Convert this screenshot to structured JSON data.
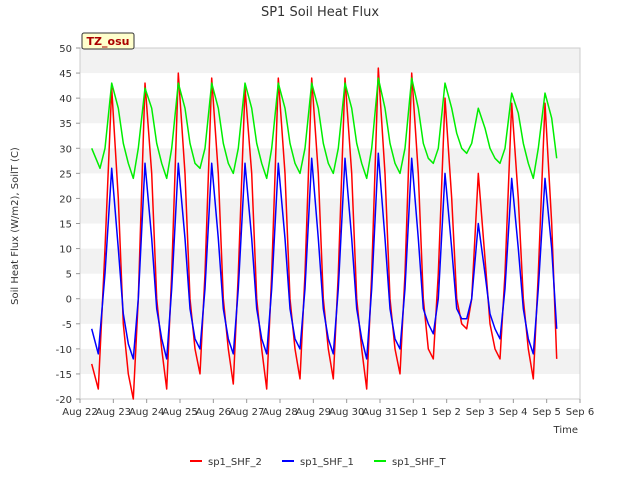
{
  "chart_data": {
    "type": "line",
    "title": "SP1 Soil Heat Flux",
    "xlabel": "Time",
    "ylabel": "Soil Heat Flux (W/m2), SoilT (C)",
    "ylim": [
      -20,
      50
    ],
    "xlim": [
      0,
      15
    ],
    "yticks": [
      -20,
      -15,
      -10,
      -5,
      0,
      5,
      10,
      15,
      20,
      25,
      30,
      35,
      40,
      45,
      50
    ],
    "xtick_labels": [
      "Aug 22",
      "Aug 23",
      "Aug 24",
      "Aug 25",
      "Aug 26",
      "Aug 27",
      "Aug 28",
      "Aug 29",
      "Aug 30",
      "Aug 31",
      "Sep 1",
      "Sep 2",
      "Sep 3",
      "Sep 4",
      "Sep 5",
      "Sep 6"
    ],
    "annotation": "TZ_osu",
    "legend_position": "bottom-center",
    "grid": "horizontal bands",
    "series": [
      {
        "name": "sp1_SHF_2",
        "color": "#ff0000",
        "x": [
          0.35,
          0.55,
          0.75,
          0.95,
          1.15,
          1.3,
          1.45,
          1.6,
          1.75,
          1.95,
          2.15,
          2.3,
          2.45,
          2.6,
          2.75,
          2.95,
          3.15,
          3.3,
          3.45,
          3.6,
          3.75,
          3.95,
          4.15,
          4.3,
          4.45,
          4.6,
          4.75,
          4.95,
          5.15,
          5.3,
          5.45,
          5.6,
          5.75,
          5.95,
          6.15,
          6.3,
          6.45,
          6.6,
          6.75,
          6.95,
          7.15,
          7.3,
          7.45,
          7.6,
          7.75,
          7.95,
          8.15,
          8.3,
          8.45,
          8.6,
          8.75,
          8.95,
          9.15,
          9.3,
          9.45,
          9.6,
          9.75,
          9.95,
          10.15,
          10.3,
          10.45,
          10.6,
          10.75,
          10.95,
          11.15,
          11.3,
          11.45,
          11.6,
          11.75,
          11.95,
          12.15,
          12.3,
          12.45,
          12.6,
          12.75,
          12.95,
          13.15,
          13.3,
          13.45,
          13.6,
          13.75,
          13.95,
          14.15,
          14.3
        ],
        "values": [
          -13,
          -18,
          10,
          42,
          20,
          -5,
          -15,
          -20,
          0,
          43,
          25,
          0,
          -10,
          -18,
          5,
          45,
          25,
          0,
          -10,
          -15,
          5,
          44,
          25,
          0,
          -10,
          -17,
          5,
          42,
          25,
          0,
          -10,
          -18,
          5,
          44,
          25,
          0,
          -10,
          -16,
          5,
          44,
          25,
          0,
          -10,
          -16,
          5,
          44,
          25,
          0,
          -10,
          -18,
          5,
          46,
          25,
          0,
          -10,
          -15,
          5,
          45,
          25,
          0,
          -10,
          -12,
          5,
          40,
          20,
          0,
          -5,
          -6,
          0,
          25,
          8,
          -5,
          -10,
          -12,
          5,
          39,
          20,
          0,
          -10,
          -16,
          5,
          39,
          15,
          -12
        ]
      },
      {
        "name": "sp1_SHF_1",
        "color": "#0000ff",
        "x": [
          0.35,
          0.55,
          0.75,
          0.95,
          1.15,
          1.3,
          1.45,
          1.6,
          1.75,
          1.95,
          2.15,
          2.3,
          2.45,
          2.6,
          2.75,
          2.95,
          3.15,
          3.3,
          3.45,
          3.6,
          3.75,
          3.95,
          4.15,
          4.3,
          4.45,
          4.6,
          4.75,
          4.95,
          5.15,
          5.3,
          5.45,
          5.6,
          5.75,
          5.95,
          6.15,
          6.3,
          6.45,
          6.6,
          6.75,
          6.95,
          7.15,
          7.3,
          7.45,
          7.6,
          7.75,
          7.95,
          8.15,
          8.3,
          8.45,
          8.6,
          8.75,
          8.95,
          9.15,
          9.3,
          9.45,
          9.6,
          9.75,
          9.95,
          10.15,
          10.3,
          10.45,
          10.6,
          10.75,
          10.95,
          11.15,
          11.3,
          11.45,
          11.6,
          11.75,
          11.95,
          12.15,
          12.3,
          12.45,
          12.6,
          12.75,
          12.95,
          13.15,
          13.3,
          13.45,
          13.6,
          13.75,
          13.95,
          14.15,
          14.3
        ],
        "values": [
          -6,
          -11,
          5,
          26,
          10,
          -3,
          -9,
          -12,
          0,
          27,
          12,
          -2,
          -8,
          -12,
          2,
          27,
          12,
          -2,
          -8,
          -10,
          2,
          27,
          12,
          -2,
          -8,
          -11,
          2,
          27,
          12,
          -2,
          -8,
          -11,
          2,
          27,
          12,
          -2,
          -8,
          -10,
          2,
          28,
          12,
          -2,
          -8,
          -11,
          2,
          28,
          12,
          -2,
          -8,
          -12,
          2,
          29,
          12,
          -2,
          -8,
          -10,
          2,
          28,
          12,
          -2,
          -5,
          -7,
          0,
          25,
          10,
          -2,
          -4,
          -4,
          0,
          15,
          5,
          -3,
          -6,
          -8,
          2,
          24,
          10,
          -2,
          -8,
          -11,
          2,
          24,
          10,
          -6
        ]
      },
      {
        "name": "sp1_SHF_T",
        "color": "#00ee00",
        "x": [
          0.35,
          0.6,
          0.75,
          0.95,
          1.15,
          1.3,
          1.45,
          1.6,
          1.75,
          1.95,
          2.15,
          2.3,
          2.45,
          2.6,
          2.75,
          2.95,
          3.15,
          3.3,
          3.45,
          3.6,
          3.75,
          3.95,
          4.15,
          4.3,
          4.45,
          4.6,
          4.75,
          4.95,
          5.15,
          5.3,
          5.45,
          5.6,
          5.75,
          5.95,
          6.15,
          6.3,
          6.45,
          6.6,
          6.75,
          6.95,
          7.15,
          7.3,
          7.45,
          7.6,
          7.75,
          7.95,
          8.15,
          8.3,
          8.45,
          8.6,
          8.75,
          8.95,
          9.15,
          9.3,
          9.45,
          9.6,
          9.75,
          9.95,
          10.15,
          10.3,
          10.45,
          10.6,
          10.75,
          10.95,
          11.15,
          11.3,
          11.45,
          11.6,
          11.75,
          11.95,
          12.15,
          12.3,
          12.45,
          12.6,
          12.75,
          12.95,
          13.15,
          13.3,
          13.45,
          13.6,
          13.75,
          13.95,
          14.15,
          14.3
        ],
        "values": [
          30,
          26,
          30,
          43,
          38,
          31,
          27,
          24,
          30,
          42,
          38,
          31,
          27,
          24,
          30,
          43,
          38,
          31,
          27,
          26,
          30,
          43,
          38,
          31,
          27,
          25,
          30,
          43,
          38,
          31,
          27,
          24,
          30,
          43,
          38,
          31,
          27,
          25,
          30,
          43,
          38,
          31,
          27,
          25,
          30,
          43,
          38,
          31,
          27,
          24,
          30,
          44,
          38,
          31,
          27,
          25,
          30,
          44,
          38,
          31,
          28,
          27,
          30,
          43,
          38,
          33,
          30,
          29,
          31,
          38,
          34,
          30,
          28,
          27,
          30,
          41,
          37,
          31,
          27,
          24,
          30,
          41,
          36,
          28
        ]
      }
    ]
  }
}
